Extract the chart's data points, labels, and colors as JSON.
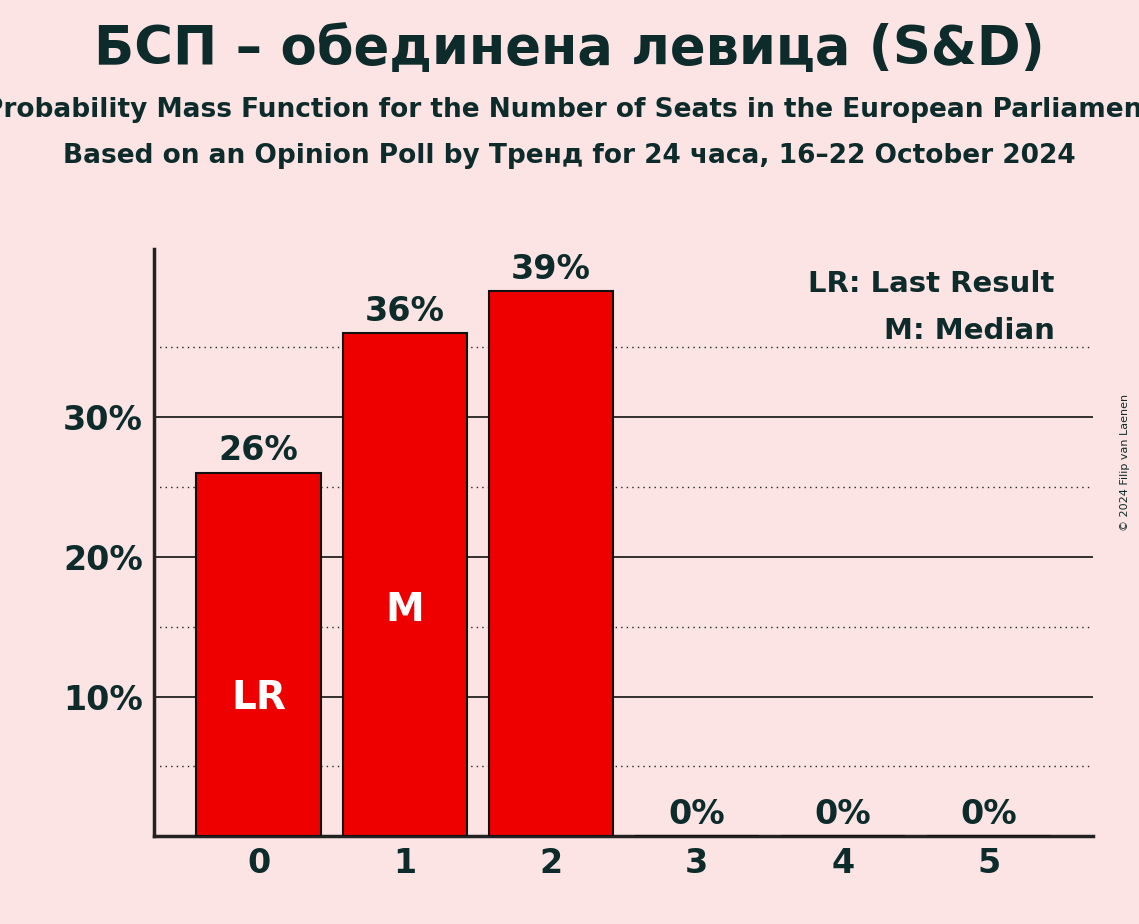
{
  "title": "БСП – обединена левица (S&D)",
  "subtitle1": "Probability Mass Function for the Number of Seats in the European Parliament",
  "subtitle2": "Based on an Opinion Poll by Тренд for 24 часа, 16–22 October 2024",
  "copyright": "© 2024 Filip van Laenen",
  "categories": [
    0,
    1,
    2,
    3,
    4,
    5
  ],
  "values": [
    26,
    36,
    39,
    0,
    0,
    0
  ],
  "bar_color": "#ee0000",
  "bar_edge_color": "#111111",
  "background_color": "#fce4e4",
  "text_color": "#0d2b2b",
  "label_color_inside": "#ffffff",
  "label_color_outside": "#0d2b2b",
  "lr_bar": 0,
  "median_bar": 1,
  "ylim": [
    0,
    42
  ],
  "yticks": [
    10,
    20,
    30
  ],
  "grid_color": "#222222",
  "dotted_grid_values": [
    5,
    15,
    25,
    35
  ],
  "solid_grid_values": [
    10,
    20,
    30
  ],
  "legend_lr": "LR: Last Result",
  "legend_m": "M: Median",
  "title_fontsize": 38,
  "subtitle_fontsize": 19,
  "axis_fontsize": 24,
  "bar_label_fontsize": 24,
  "inside_label_fontsize": 28,
  "legend_fontsize": 21
}
